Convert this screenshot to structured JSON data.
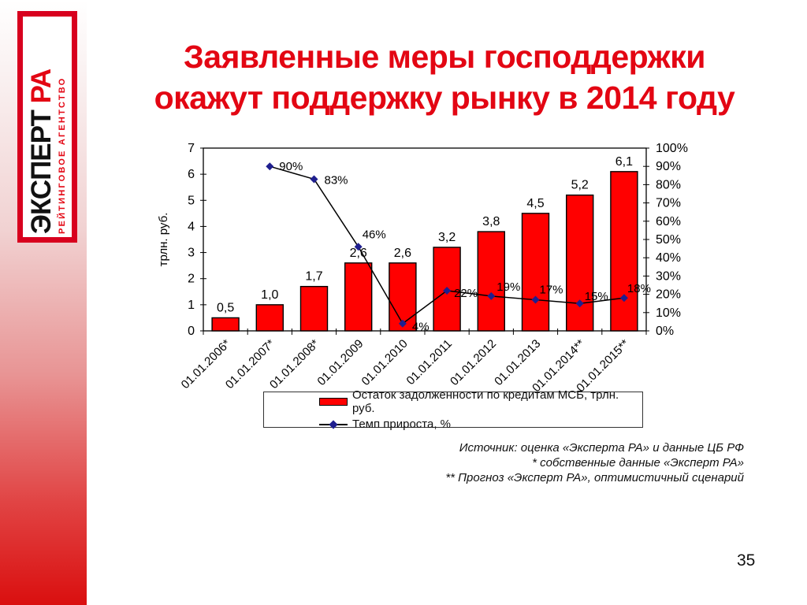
{
  "slide": {
    "title_line1": "Заявленные меры господдержки",
    "title_line2": "окажут поддержку рынку в 2014 году",
    "page_number": "35",
    "accent_color": "#e30613"
  },
  "logo": {
    "brand_main": "ЭКСПЕРТ",
    "brand_accent": "РА",
    "brand_sub": "РЕЙТИНГОВОЕ АГЕНТСТВО"
  },
  "footnotes": {
    "source": "Источник: оценка «Эксперта РА» и данные ЦБ РФ",
    "note1": "*  собственные данные «Эксперт РА»",
    "note2": "** Прогноз «Эксперт РА», оптимистичный сценарий"
  },
  "chart_data": {
    "type": "bar+line",
    "categories": [
      "01.01.2006*",
      "01.01.2007*",
      "01.01.2008*",
      "01.01.2009",
      "01.01.2010",
      "01.01.2011",
      "01.01.2012",
      "01.01.2013",
      "01.01.2014**",
      "01.01.2015**"
    ],
    "series": [
      {
        "name": "Остаток задолженности  по кредитам МСБ, трлн.  руб.",
        "type": "bar",
        "axis": "left",
        "values": [
          0.5,
          1.0,
          1.7,
          2.6,
          2.6,
          3.2,
          3.8,
          4.5,
          5.2,
          6.1
        ],
        "labels": [
          "0,5",
          "1,0",
          "1,7",
          "2,6",
          "2,6",
          "3,2",
          "3,8",
          "4,5",
          "5,2",
          "6,1"
        ],
        "color": "#ff0000",
        "border_color": "#000000"
      },
      {
        "name": "Темп прироста, %",
        "type": "line",
        "axis": "right",
        "values": [
          null,
          90,
          83,
          46,
          4,
          22,
          19,
          17,
          15,
          18
        ],
        "labels": [
          null,
          "90%",
          "83%",
          "46%",
          "4%",
          "22%",
          "19%",
          "17%",
          "15%",
          "18%"
        ],
        "color": "#000000",
        "marker_color": "#1f1f8f",
        "marker": "diamond"
      }
    ],
    "left_axis": {
      "label": "трлн. руб.",
      "min": 0,
      "max": 7,
      "step": 1
    },
    "right_axis": {
      "min": 0,
      "max": 100,
      "step": 10,
      "suffix": "%"
    },
    "grid": false,
    "legend_position": "bottom"
  }
}
